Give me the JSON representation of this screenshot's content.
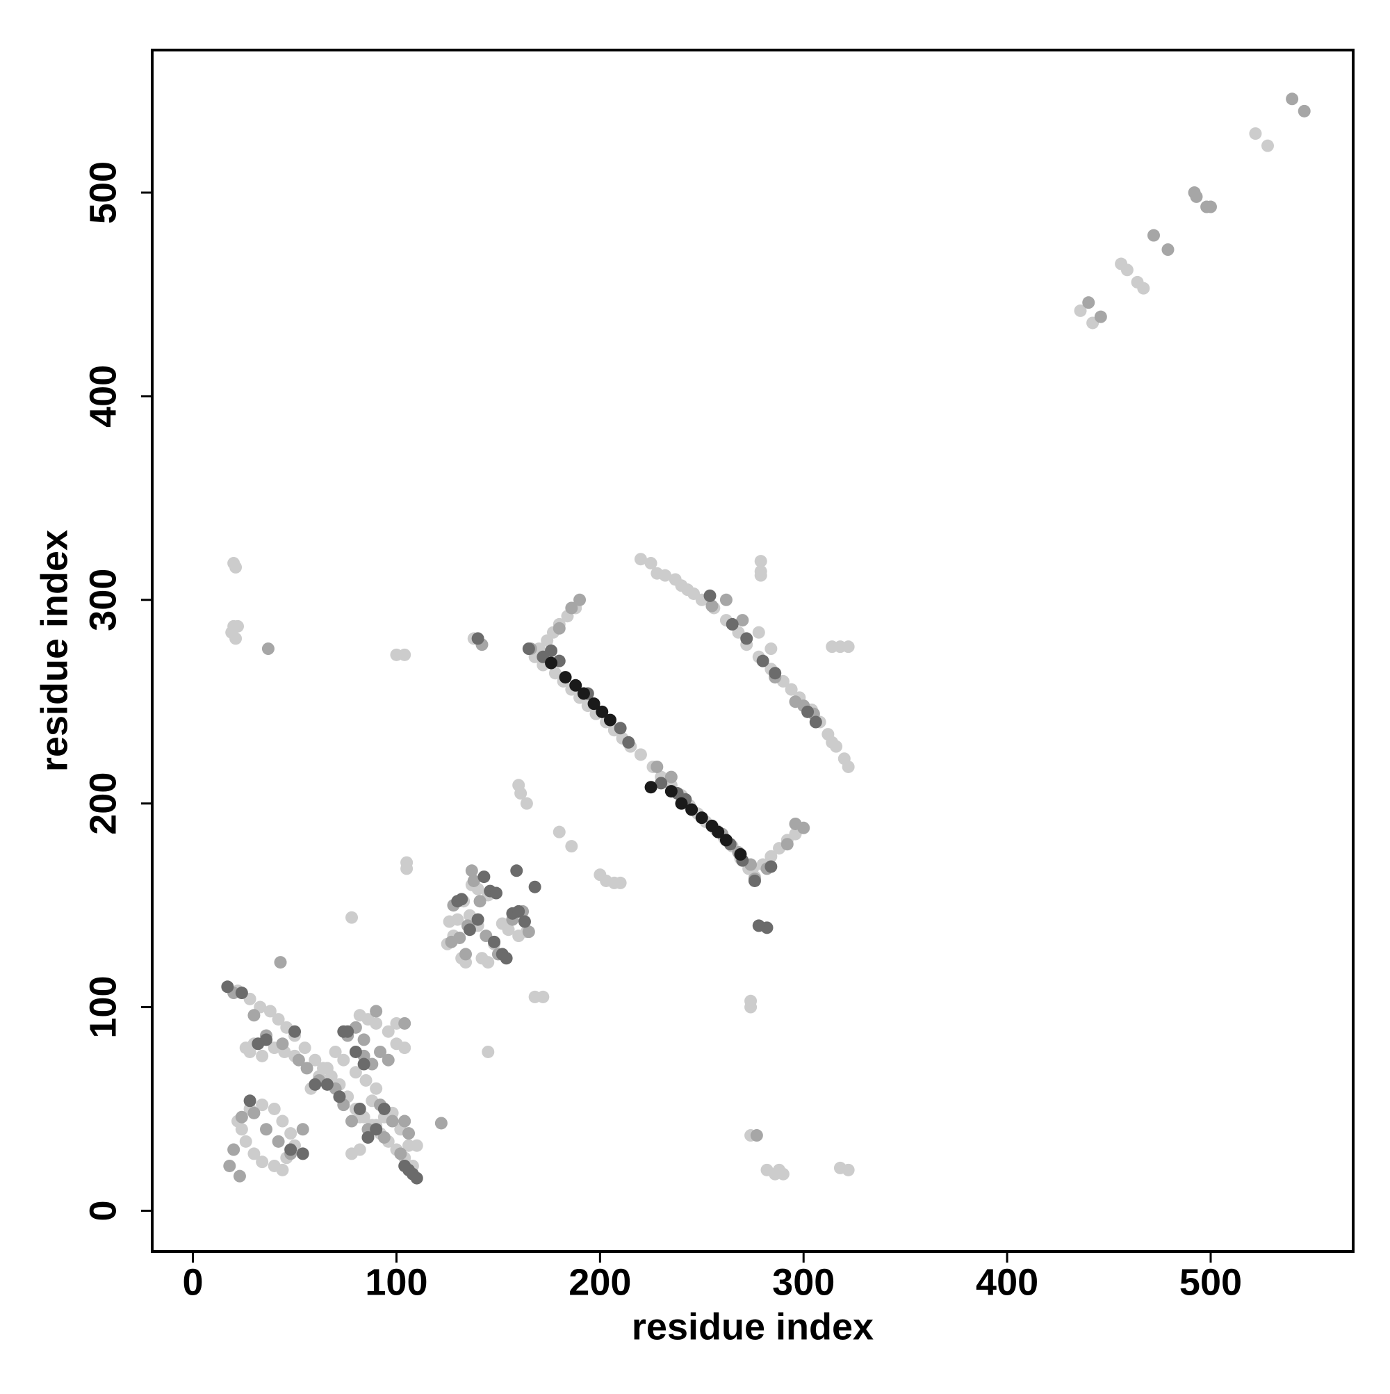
{
  "chart_data": {
    "type": "scatter",
    "x_label": "residue index",
    "y_label": "residue index",
    "xlim": [
      -20,
      570
    ],
    "ylim": [
      -20,
      570
    ],
    "xticks": [
      0,
      100,
      200,
      300,
      400,
      500
    ],
    "yticks": [
      0,
      100,
      200,
      300,
      400,
      500
    ],
    "series": [
      {
        "color": "#cccccc",
        "x": [
          20,
          21,
          20,
          19,
          21,
          22,
          100,
          104,
          138,
          160,
          161,
          164,
          180,
          186,
          200,
          203,
          207,
          210,
          168,
          172,
          78,
          105,
          105,
          145,
          274,
          274,
          274,
          282,
          286,
          288,
          290,
          318,
          322,
          279,
          279,
          279,
          278,
          284,
          314,
          318,
          322,
          220,
          225,
          228,
          232,
          237,
          240,
          243,
          246,
          436,
          442,
          456,
          459,
          464,
          467,
          522,
          528,
          168,
          172,
          178,
          182,
          186,
          190,
          194,
          198,
          203,
          207,
          211,
          215,
          220,
          226,
          230,
          235,
          240,
          244,
          248,
          252,
          257,
          261,
          265,
          269,
          273,
          276,
          170,
          174,
          177,
          180,
          184,
          188,
          275,
          280,
          284,
          288,
          292,
          296,
          250,
          256,
          262,
          268,
          272,
          278,
          284,
          290,
          294,
          298,
          304,
          308,
          312,
          316,
          320,
          322,
          314,
          125,
          128,
          132,
          134,
          130,
          136,
          140,
          142,
          145,
          148,
          152,
          155,
          160,
          164,
          137,
          140,
          145,
          133,
          126,
          22,
          28,
          33,
          38,
          42,
          46,
          50,
          55,
          60,
          64,
          68,
          72,
          76,
          80,
          84,
          88,
          92,
          96,
          100,
          104,
          108,
          26,
          28,
          30,
          34,
          40,
          45,
          50,
          82,
          86,
          90,
          96,
          100,
          104,
          100,
          22,
          24,
          26,
          30,
          34,
          40,
          44,
          46,
          50,
          48,
          44,
          40,
          34,
          28,
          78,
          82,
          86,
          90,
          94,
          98,
          102,
          106,
          110,
          74,
          70,
          66,
          80,
          85,
          90,
          88,
          82,
          62,
          58
        ],
        "values": [
          318,
          316,
          287,
          284,
          281,
          287,
          273,
          273,
          281,
          209,
          205,
          200,
          186,
          179,
          165,
          162,
          161,
          161,
          105,
          105,
          144,
          171,
          168,
          78,
          103,
          100,
          37,
          20,
          18,
          20,
          18,
          21,
          20,
          319,
          314,
          312,
          284,
          276,
          277,
          277,
          277,
          320,
          318,
          313,
          312,
          310,
          307,
          305,
          303,
          442,
          436,
          465,
          462,
          456,
          453,
          529,
          523,
          272,
          268,
          264,
          260,
          256,
          252,
          248,
          244,
          240,
          236,
          232,
          228,
          224,
          218,
          213,
          209,
          204,
          199,
          195,
          191,
          187,
          183,
          179,
          173,
          168,
          164,
          276,
          280,
          284,
          288,
          292,
          296,
          168,
          170,
          174,
          178,
          182,
          185,
          300,
          296,
          290,
          284,
          278,
          272,
          266,
          260,
          256,
          252,
          246,
          240,
          234,
          228,
          222,
          218,
          230,
          131,
          135,
          124,
          122,
          143,
          145,
          140,
          124,
          122,
          131,
          141,
          138,
          135,
          137,
          160,
          158,
          155,
          152,
          142,
          108,
          104,
          100,
          98,
          94,
          90,
          86,
          80,
          74,
          70,
          66,
          62,
          56,
          50,
          46,
          42,
          38,
          34,
          30,
          26,
          22,
          80,
          78,
          82,
          76,
          80,
          78,
          76,
          96,
          94,
          92,
          88,
          82,
          80,
          92,
          44,
          40,
          34,
          28,
          24,
          22,
          20,
          26,
          32,
          38,
          44,
          50,
          52,
          50,
          28,
          30,
          36,
          42,
          46,
          48,
          40,
          32,
          32,
          74,
          78,
          70,
          68,
          64,
          60,
          54,
          46,
          66,
          60
        ]
      },
      {
        "color": "#a6a6a6",
        "x": [
          37,
          142,
          122,
          277,
          472,
          479,
          440,
          446,
          492,
          493,
          498,
          500,
          540,
          546,
          166,
          180,
          186,
          190,
          228,
          235,
          255,
          262,
          270,
          286,
          296,
          300,
          305,
          300,
          296,
          292,
          282,
          276,
          274,
          268,
          260,
          127,
          131,
          134,
          138,
          137,
          141,
          144,
          150,
          157,
          162,
          165,
          128,
          135,
          20,
          30,
          36,
          44,
          52,
          56,
          62,
          70,
          74,
          78,
          86,
          94,
          102,
          20,
          24,
          30,
          36,
          42,
          48,
          54,
          84,
          88,
          92,
          96,
          80,
          76,
          84,
          90,
          104,
          92,
          98,
          104,
          106,
          18,
          23,
          43
        ],
        "values": [
          276,
          278,
          43,
          37,
          479,
          472,
          446,
          439,
          500,
          498,
          493,
          493,
          546,
          540,
          276,
          286,
          296,
          300,
          218,
          213,
          297,
          300,
          290,
          262,
          250,
          248,
          244,
          188,
          190,
          180,
          168,
          163,
          170,
          176,
          185,
          132,
          134,
          126,
          162,
          167,
          152,
          135,
          126,
          143,
          147,
          137,
          150,
          140,
          107,
          96,
          86,
          82,
          74,
          70,
          64,
          60,
          52,
          44,
          40,
          36,
          28,
          30,
          46,
          48,
          40,
          34,
          28,
          40,
          76,
          72,
          78,
          74,
          90,
          86,
          84,
          98,
          92,
          52,
          44,
          44,
          38,
          22,
          17,
          122
        ]
      },
      {
        "color": "#6b6b6b",
        "x": [
          140,
          159,
          168,
          282,
          278,
          165,
          172,
          176,
          180,
          194,
          210,
          214,
          230,
          238,
          242,
          254,
          265,
          272,
          280,
          286,
          302,
          306,
          276,
          284,
          270,
          264,
          130,
          132,
          140,
          143,
          146,
          149,
          152,
          154,
          157,
          160,
          163,
          136,
          148,
          17,
          24,
          36,
          50,
          60,
          66,
          72,
          82,
          94,
          104,
          108,
          110,
          106,
          28,
          54,
          48,
          80,
          84,
          76,
          74,
          86,
          90,
          32
        ],
        "values": [
          281,
          167,
          159,
          139,
          140,
          276,
          272,
          275,
          270,
          254,
          237,
          230,
          210,
          205,
          202,
          302,
          288,
          281,
          270,
          264,
          245,
          240,
          162,
          169,
          172,
          180,
          152,
          153,
          143,
          164,
          157,
          156,
          126,
          124,
          146,
          147,
          142,
          138,
          132,
          110,
          107,
          84,
          88,
          62,
          62,
          56,
          50,
          50,
          22,
          18,
          16,
          20,
          54,
          28,
          30,
          78,
          72,
          88,
          88,
          36,
          40,
          82
        ]
      },
      {
        "color": "#1a1a1a",
        "x": [
          176,
          183,
          188,
          192,
          197,
          201,
          205,
          225,
          235,
          240,
          245,
          250,
          255,
          258,
          262,
          269
        ],
        "values": [
          269,
          262,
          258,
          254,
          249,
          245,
          241,
          208,
          206,
          200,
          197,
          193,
          189,
          186,
          182,
          175
        ]
      }
    ]
  }
}
